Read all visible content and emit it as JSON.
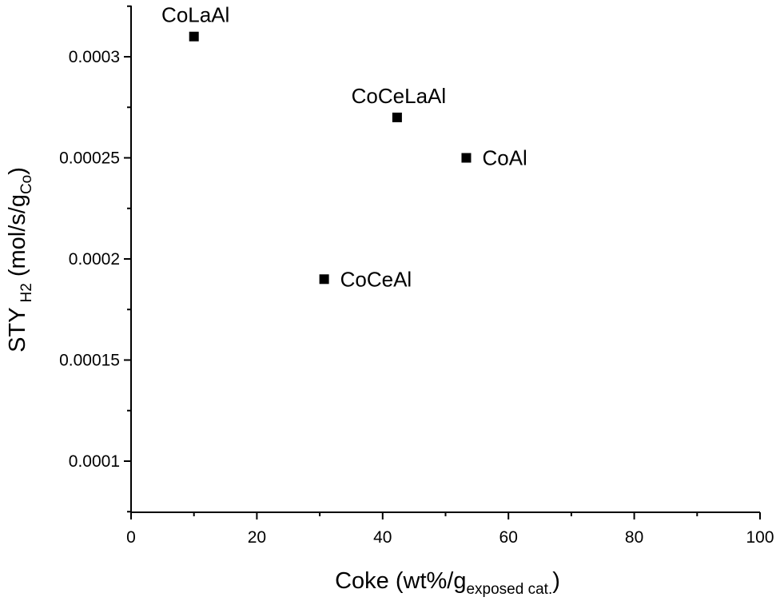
{
  "chart_data": {
    "type": "scatter",
    "title": "",
    "xlim": [
      0,
      100
    ],
    "ylim": [
      7.5e-05,
      0.000325
    ],
    "x_ticks": [
      0,
      20,
      40,
      60,
      80,
      100
    ],
    "x_tick_labels": [
      "0",
      "20",
      "40",
      "60",
      "80",
      "100"
    ],
    "y_ticks": [
      0.0001,
      0.00015,
      0.0002,
      0.00025,
      0.0003
    ],
    "y_tick_labels": [
      "0.0001",
      "0.00015",
      "0.0002",
      "0.00025",
      "0.0003"
    ],
    "xlabel": {
      "main": "Coke (wt%/g",
      "sub": "exposed cat.",
      "tail": ")"
    },
    "ylabel": {
      "main": "STY",
      "sub": "H2",
      "mid": " (mol/s/g",
      "sub2": "Co",
      "tail": ")"
    },
    "grid": false,
    "legend": "none",
    "marker": "square",
    "marker_color": "#000000",
    "points": [
      {
        "label": "CoLaAl",
        "x": 10,
        "y": 0.00031,
        "label_pos": "above"
      },
      {
        "label": "CoCeLaAl",
        "x": 42.3,
        "y": 0.00027,
        "label_pos": "above"
      },
      {
        "label": "CoAl",
        "x": 53.3,
        "y": 0.00025,
        "label_pos": "right"
      },
      {
        "label": "CoCeAl",
        "x": 30.7,
        "y": 0.00019,
        "label_pos": "right"
      }
    ]
  }
}
